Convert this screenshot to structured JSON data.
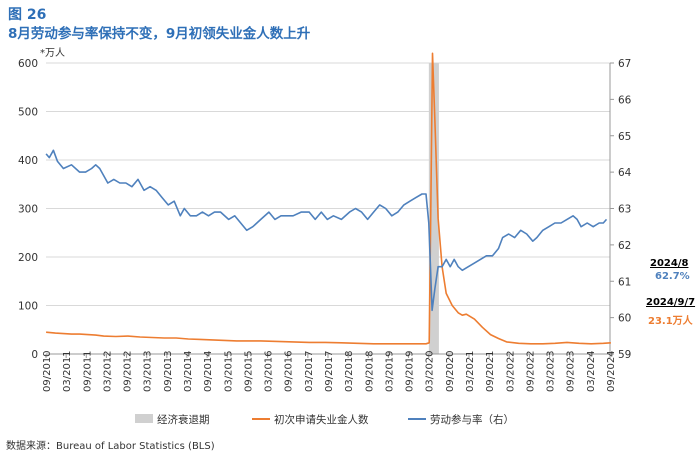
{
  "figure": {
    "title": "图 26",
    "subtitle": "8月劳动参与率保持不变，9月初领失业金人数上升",
    "unit_label": "*万人",
    "source": "数据来源：Bureau of Labor Statistics (BLS)"
  },
  "annotations": {
    "lfpr_date": "2024/8",
    "lfpr_value": "62.7%",
    "claims_date": "2024/9/7",
    "claims_value": "23.1万人"
  },
  "colors": {
    "claims": "#ed7d31",
    "lfpr": "#4f81bd",
    "recession": "#d0d0d0"
  },
  "chart_data": {
    "type": "line",
    "title": "8月劳动参与率保持不变，9月初领失业金人数上升",
    "y_left": {
      "label": "*万人",
      "range": [
        0,
        600
      ],
      "ticks": [
        "0",
        "100",
        "200",
        "300",
        "400",
        "500",
        "600"
      ]
    },
    "y_right": {
      "label": "",
      "range": [
        59,
        67
      ],
      "ticks": [
        "59",
        "60",
        "61",
        "62",
        "63",
        "64",
        "65",
        "66",
        "67"
      ]
    },
    "x_range": [
      2010.667,
      2024.667
    ],
    "x_ticks": [
      "09/2010",
      "03/2011",
      "09/2011",
      "03/2012",
      "09/2012",
      "03/2013",
      "09/2013",
      "03/2014",
      "09/2014",
      "03/2015",
      "09/2015",
      "03/2016",
      "09/2016",
      "03/2017",
      "09/2017",
      "03/2018",
      "09/2018",
      "03/2019",
      "09/2019",
      "03/2020",
      "09/2020",
      "03/2021",
      "09/2021",
      "03/2022",
      "09/2022",
      "03/2023",
      "09/2023",
      "03/2024",
      "09/2024"
    ],
    "legend": {
      "position": "bottom",
      "items": [
        "经济衰退期",
        "初次申请失业金人数",
        "劳动参与率（右）"
      ]
    },
    "recession": {
      "name": "经济衰退期",
      "start": 2020.17,
      "end": 2020.42
    },
    "series": [
      {
        "name": "初次申请失业金人数",
        "axis": "left",
        "points": [
          [
            2010.67,
            45
          ],
          [
            2010.9,
            43
          ],
          [
            2011.1,
            42
          ],
          [
            2011.3,
            41
          ],
          [
            2011.5,
            41
          ],
          [
            2011.7,
            40
          ],
          [
            2011.9,
            39
          ],
          [
            2012.1,
            37
          ],
          [
            2012.4,
            36
          ],
          [
            2012.7,
            37
          ],
          [
            2013.0,
            35
          ],
          [
            2013.3,
            34
          ],
          [
            2013.6,
            33
          ],
          [
            2013.9,
            33
          ],
          [
            2014.2,
            31
          ],
          [
            2014.5,
            30
          ],
          [
            2014.8,
            29
          ],
          [
            2015.1,
            28
          ],
          [
            2015.4,
            27
          ],
          [
            2015.7,
            27
          ],
          [
            2016.0,
            27
          ],
          [
            2016.4,
            26
          ],
          [
            2016.8,
            25
          ],
          [
            2017.2,
            24
          ],
          [
            2017.6,
            24
          ],
          [
            2018.0,
            23
          ],
          [
            2018.4,
            22
          ],
          [
            2018.8,
            21
          ],
          [
            2019.2,
            21
          ],
          [
            2019.6,
            21
          ],
          [
            2019.9,
            21
          ],
          [
            2020.1,
            21
          ],
          [
            2020.18,
            23
          ],
          [
            2020.22,
            300
          ],
          [
            2020.26,
            620
          ],
          [
            2020.32,
            480
          ],
          [
            2020.4,
            280
          ],
          [
            2020.5,
            180
          ],
          [
            2020.6,
            125
          ],
          [
            2020.75,
            100
          ],
          [
            2020.9,
            85
          ],
          [
            2021.0,
            80
          ],
          [
            2021.1,
            82
          ],
          [
            2021.3,
            72
          ],
          [
            2021.5,
            55
          ],
          [
            2021.7,
            40
          ],
          [
            2021.9,
            32
          ],
          [
            2022.1,
            25
          ],
          [
            2022.4,
            22
          ],
          [
            2022.7,
            21
          ],
          [
            2023.0,
            21
          ],
          [
            2023.3,
            22
          ],
          [
            2023.6,
            24
          ],
          [
            2023.9,
            22
          ],
          [
            2024.2,
            21
          ],
          [
            2024.5,
            22
          ],
          [
            2024.69,
            23.1
          ]
        ]
      },
      {
        "name": "劳动参与率（右）",
        "axis": "right",
        "points": [
          [
            2010.67,
            64.5
          ],
          [
            2010.75,
            64.4
          ],
          [
            2010.85,
            64.6
          ],
          [
            2010.95,
            64.3
          ],
          [
            2011.1,
            64.1
          ],
          [
            2011.3,
            64.2
          ],
          [
            2011.5,
            64.0
          ],
          [
            2011.65,
            64.0
          ],
          [
            2011.8,
            64.1
          ],
          [
            2011.9,
            64.2
          ],
          [
            2012.0,
            64.1
          ],
          [
            2012.2,
            63.7
          ],
          [
            2012.35,
            63.8
          ],
          [
            2012.5,
            63.7
          ],
          [
            2012.65,
            63.7
          ],
          [
            2012.8,
            63.6
          ],
          [
            2012.95,
            63.8
          ],
          [
            2013.1,
            63.5
          ],
          [
            2013.25,
            63.6
          ],
          [
            2013.4,
            63.5
          ],
          [
            2013.55,
            63.3
          ],
          [
            2013.7,
            63.1
          ],
          [
            2013.85,
            63.2
          ],
          [
            2014.0,
            62.8
          ],
          [
            2014.1,
            63.0
          ],
          [
            2014.25,
            62.8
          ],
          [
            2014.4,
            62.8
          ],
          [
            2014.55,
            62.9
          ],
          [
            2014.7,
            62.8
          ],
          [
            2014.85,
            62.9
          ],
          [
            2015.0,
            62.9
          ],
          [
            2015.2,
            62.7
          ],
          [
            2015.35,
            62.8
          ],
          [
            2015.5,
            62.6
          ],
          [
            2015.65,
            62.4
          ],
          [
            2015.8,
            62.5
          ],
          [
            2016.0,
            62.7
          ],
          [
            2016.2,
            62.9
          ],
          [
            2016.35,
            62.7
          ],
          [
            2016.5,
            62.8
          ],
          [
            2016.65,
            62.8
          ],
          [
            2016.8,
            62.8
          ],
          [
            2017.0,
            62.9
          ],
          [
            2017.2,
            62.9
          ],
          [
            2017.35,
            62.7
          ],
          [
            2017.5,
            62.9
          ],
          [
            2017.65,
            62.7
          ],
          [
            2017.8,
            62.8
          ],
          [
            2018.0,
            62.7
          ],
          [
            2018.2,
            62.9
          ],
          [
            2018.35,
            63.0
          ],
          [
            2018.5,
            62.9
          ],
          [
            2018.65,
            62.7
          ],
          [
            2018.8,
            62.9
          ],
          [
            2018.95,
            63.1
          ],
          [
            2019.1,
            63.0
          ],
          [
            2019.25,
            62.8
          ],
          [
            2019.4,
            62.9
          ],
          [
            2019.55,
            63.1
          ],
          [
            2019.7,
            63.2
          ],
          [
            2019.85,
            63.3
          ],
          [
            2020.0,
            63.4
          ],
          [
            2020.1,
            63.4
          ],
          [
            2020.17,
            62.6
          ],
          [
            2020.25,
            60.2
          ],
          [
            2020.32,
            60.8
          ],
          [
            2020.4,
            61.4
          ],
          [
            2020.5,
            61.4
          ],
          [
            2020.6,
            61.6
          ],
          [
            2020.7,
            61.4
          ],
          [
            2020.8,
            61.6
          ],
          [
            2020.9,
            61.4
          ],
          [
            2021.0,
            61.3
          ],
          [
            2021.15,
            61.4
          ],
          [
            2021.3,
            61.5
          ],
          [
            2021.45,
            61.6
          ],
          [
            2021.6,
            61.7
          ],
          [
            2021.75,
            61.7
          ],
          [
            2021.9,
            61.9
          ],
          [
            2022.0,
            62.2
          ],
          [
            2022.15,
            62.3
          ],
          [
            2022.3,
            62.2
          ],
          [
            2022.45,
            62.4
          ],
          [
            2022.6,
            62.3
          ],
          [
            2022.75,
            62.1
          ],
          [
            2022.85,
            62.2
          ],
          [
            2023.0,
            62.4
          ],
          [
            2023.15,
            62.5
          ],
          [
            2023.3,
            62.6
          ],
          [
            2023.45,
            62.6
          ],
          [
            2023.6,
            62.7
          ],
          [
            2023.75,
            62.8
          ],
          [
            2023.85,
            62.7
          ],
          [
            2023.95,
            62.5
          ],
          [
            2024.1,
            62.6
          ],
          [
            2024.25,
            62.5
          ],
          [
            2024.4,
            62.6
          ],
          [
            2024.5,
            62.6
          ],
          [
            2024.58,
            62.7
          ]
        ]
      }
    ]
  }
}
